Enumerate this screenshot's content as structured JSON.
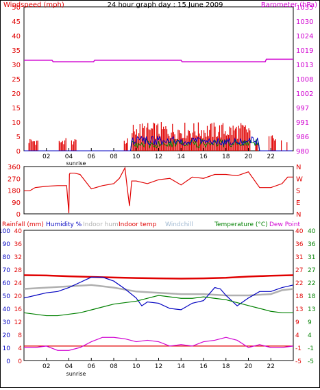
{
  "chart_data": [
    {
      "type": "line",
      "title": "24 hour graph day : 15 June 2009",
      "left_axis_label": "Windspeed (mph)",
      "right_axis_label": "Barometer (hPa)",
      "xlim": [
        0,
        24
      ],
      "left_ylim": [
        0,
        50
      ],
      "right_ylim": [
        980,
        1035
      ],
      "x_tick_labels": [
        "02",
        "04",
        "06",
        "08",
        "10",
        "12",
        "14",
        "16",
        "18",
        "20",
        "22"
      ],
      "sunrise_label": "sunrise",
      "left_tick_labels": [
        "0",
        "5",
        "10",
        "15",
        "20",
        "25",
        "30",
        "35",
        "40",
        "45",
        "50"
      ],
      "right_tick_labels": [
        "980",
        "986",
        "991",
        "997",
        "1002",
        "1008",
        "1013",
        "1019",
        "1024",
        "1030",
        "1035"
      ],
      "colors": {
        "wind_gust": "#e00000",
        "wind_avg": "#0000c0",
        "wind_third": "#008000",
        "barometer": "#d000d0"
      },
      "series": [
        {
          "role": "barometer",
          "x": [
            0,
            2.5,
            2.6,
            3.0,
            3.1,
            6.2,
            6.3,
            14.0,
            14.1,
            21.5,
            21.6,
            24
          ],
          "values": [
            1014.6,
            1014.6,
            1014.0,
            1014.0,
            1014.0,
            1014.0,
            1014.6,
            1014.6,
            1014.0,
            1014.0,
            1015.0,
            1015.0
          ]
        }
      ],
      "grid": false
    },
    {
      "type": "line",
      "title": "",
      "left_ylim": [
        0,
        360
      ],
      "left_tick_labels": [
        "0",
        "90",
        "180",
        "270",
        "360"
      ],
      "right_tick_labels": [
        "N",
        "E",
        "S",
        "W",
        "N"
      ],
      "colors": {
        "direction": "#e00000"
      },
      "series": [
        {
          "role": "direction",
          "x": [
            0,
            0.5,
            1,
            2,
            3,
            3.8,
            4.0,
            4.05,
            4.1,
            4.5,
            5.0,
            6.0,
            7.0,
            8.0,
            8.5,
            9.0,
            9.2,
            9.4,
            9.6,
            10,
            11,
            12,
            13,
            14,
            15,
            16,
            17,
            18,
            19,
            20,
            21,
            22,
            23,
            23.5,
            24
          ],
          "values": [
            175,
            175,
            200,
            210,
            215,
            215,
            5,
            300,
            310,
            310,
            300,
            190,
            215,
            230,
            270,
            350,
            200,
            60,
            250,
            250,
            230,
            260,
            270,
            220,
            280,
            270,
            300,
            300,
            290,
            320,
            200,
            200,
            230,
            280,
            280
          ]
        }
      ],
      "grid": false
    },
    {
      "type": "line",
      "title": "",
      "legend": [
        "Rainfall (mm)",
        "Humidity %",
        "Indoor hum",
        "Indoor temp",
        "Windchill",
        "Temperature (°C)",
        "Dew Point"
      ],
      "left_ylim": [
        0,
        100
      ],
      "right_ylim": [
        -5,
        40
      ],
      "left_tick_labels": [
        "0",
        "10",
        "20",
        "30",
        "40",
        "50",
        "60",
        "70",
        "80",
        "90",
        "100"
      ],
      "left_tick_labels_2": [
        "0",
        "4",
        "8",
        "12",
        "16",
        "20",
        "24",
        "28",
        "32",
        "36",
        "40"
      ],
      "right_tick_labels": [
        "-5",
        "-1",
        "4",
        "9",
        "13",
        "18",
        "22",
        "27",
        "31",
        "36",
        "40"
      ],
      "right_tick_labels_2": [
        "-5",
        "-1",
        "4",
        "9",
        "13",
        "18",
        "22",
        "27",
        "31",
        "36",
        "40"
      ],
      "x_tick_labels": [
        "02",
        "04",
        "06",
        "08",
        "10",
        "12",
        "14",
        "16",
        "18",
        "20",
        "22"
      ],
      "sunrise_label": "sunrise",
      "colors": {
        "rainfall": "#e00000",
        "humidity": "#0000c0",
        "indoor_hum": "#b0b0b0",
        "indoor_temp": "#e00000",
        "windchill": "#a0b8d0",
        "temperature": "#008000",
        "dew_point": "#d000d0"
      },
      "series": [
        {
          "role": "rainfall",
          "x": [
            0,
            24
          ],
          "values": [
            0,
            0
          ]
        },
        {
          "role": "indoor_temp",
          "x": [
            0,
            2,
            4,
            6,
            8,
            10,
            12,
            14,
            16,
            18,
            20,
            22,
            24
          ],
          "values": [
            24.5,
            24.4,
            24.1,
            23.9,
            23.7,
            23.5,
            23.4,
            23.3,
            23.4,
            23.6,
            24.0,
            24.3,
            24.5
          ]
        },
        {
          "role": "indoor_hum",
          "x": [
            0,
            2,
            4,
            6,
            8,
            10,
            12,
            14,
            16,
            18,
            20,
            22,
            23,
            24
          ],
          "values": [
            55,
            56,
            57,
            58,
            56,
            53,
            52,
            51,
            51,
            50,
            50,
            51,
            54,
            55
          ]
        },
        {
          "role": "humidity",
          "x": [
            0,
            1,
            2,
            3,
            4,
            5,
            6,
            7,
            8,
            9,
            10,
            10.5,
            11,
            12,
            13,
            14,
            15,
            16,
            17,
            17.5,
            18,
            18.5,
            19,
            20,
            21,
            22,
            23,
            24
          ],
          "values": [
            48,
            50,
            52,
            53,
            56,
            60,
            64,
            64,
            61,
            55,
            48,
            42,
            45,
            44,
            40,
            39,
            44,
            46,
            56,
            55,
            50,
            46,
            42,
            48,
            53,
            53,
            56,
            58
          ]
        },
        {
          "role": "temperature",
          "x": [
            0,
            1,
            2,
            3,
            4,
            5,
            6,
            7,
            8,
            9,
            10,
            11,
            12,
            13,
            14,
            15,
            16,
            17,
            18,
            19,
            20,
            21,
            22,
            23,
            24
          ],
          "values": [
            11.5,
            11.0,
            10.5,
            10.5,
            11.0,
            11.5,
            12.5,
            13.5,
            14.5,
            15.0,
            15.5,
            16.5,
            17.5,
            17.0,
            16.5,
            16.5,
            17.0,
            16.5,
            16.0,
            15.0,
            14.0,
            13.0,
            12.0,
            11.5,
            11.5
          ]
        },
        {
          "role": "dew_point",
          "x": [
            0,
            1,
            2,
            3,
            4,
            5,
            6,
            7,
            8,
            9,
            10,
            11,
            12,
            13,
            14,
            15,
            16,
            17,
            18,
            19,
            20,
            21,
            22,
            23,
            24
          ],
          "values": [
            -0.5,
            -0.5,
            0,
            -1.5,
            -1.5,
            -0.5,
            1.5,
            3.0,
            3.0,
            2.5,
            1.5,
            2.0,
            1.5,
            0,
            0.5,
            0,
            1.5,
            2.0,
            3.0,
            2.0,
            -0.5,
            0.5,
            -0.5,
            -0.5,
            0
          ]
        }
      ],
      "grid": false
    }
  ]
}
